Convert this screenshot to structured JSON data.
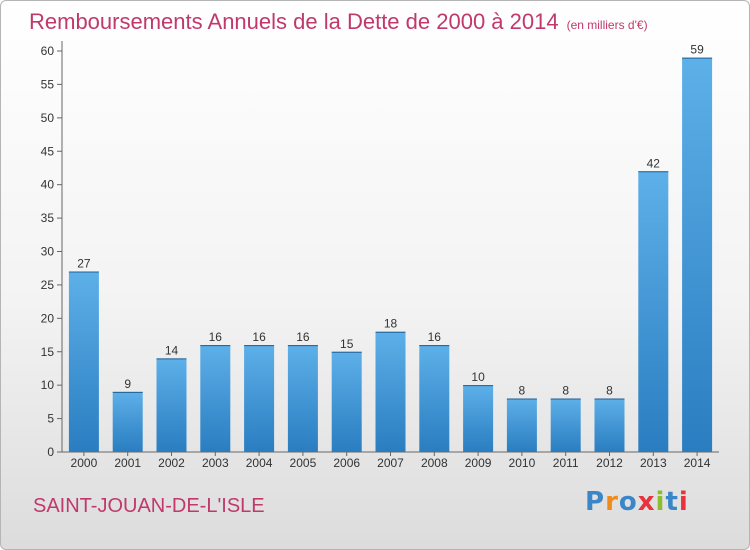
{
  "title": "Remboursements Annuels de la Dette de 2000 à 2014",
  "unit": "(en milliers d'€)",
  "city": "SAINT-JOUAN-DE-L'ISLE",
  "logo": "Proxiti",
  "logo_colors": [
    "#3b86c8",
    "#f08a1c",
    "#3b86c8",
    "#e8323c",
    "#8dbd2c",
    "#3b86c8",
    "#e8323c"
  ],
  "colors": {
    "bar_light": "#5db0e8",
    "bar_dark": "#2a7dc0",
    "accent": "#c0396a"
  },
  "chart_data": {
    "type": "bar",
    "title": "Remboursements Annuels de la Dette de 2000 à 2014",
    "subtitle": "(en milliers d'€)",
    "categories": [
      "2000",
      "2001",
      "2002",
      "2003",
      "2004",
      "2005",
      "2006",
      "2007",
      "2008",
      "2009",
      "2010",
      "2011",
      "2012",
      "2013",
      "2014"
    ],
    "values": [
      27,
      9,
      14,
      16,
      16,
      16,
      15,
      18,
      16,
      10,
      8,
      8,
      8,
      42,
      59
    ],
    "ylim": [
      0,
      60
    ],
    "yticks": [
      0,
      5,
      10,
      15,
      20,
      25,
      30,
      35,
      40,
      45,
      50,
      55,
      60
    ],
    "grid": false,
    "data_labels": true
  }
}
